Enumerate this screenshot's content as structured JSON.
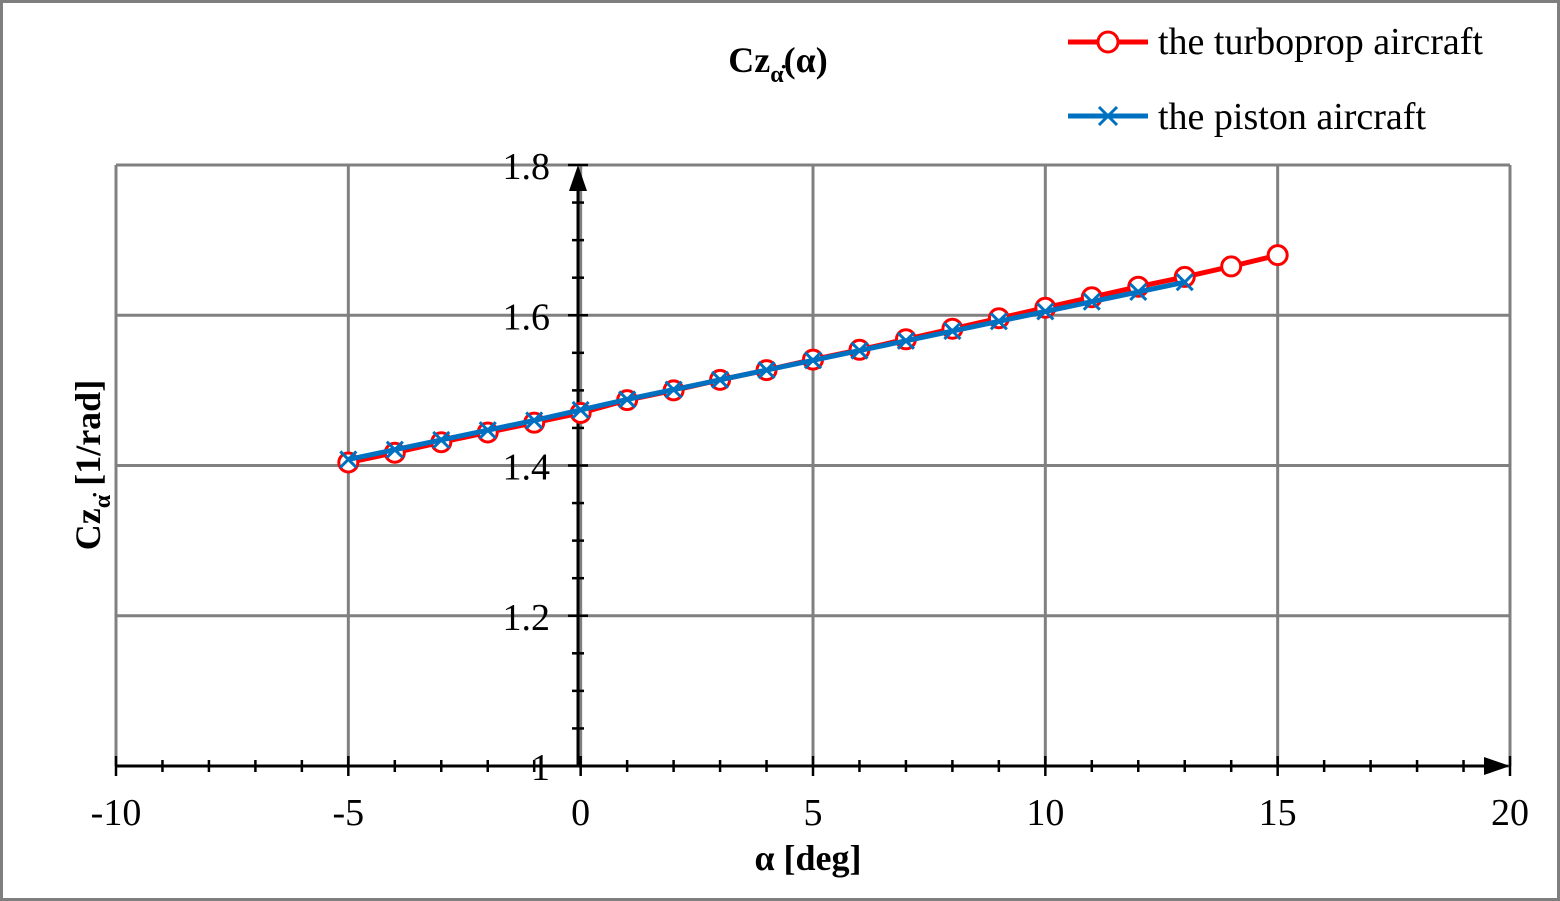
{
  "chart_data": {
    "type": "line",
    "title": "Czα̇(α)",
    "xlabel": "α [deg]",
    "ylabel": "Czα̇ [1/rad]",
    "xlim": [
      -10,
      20
    ],
    "ylim": [
      1,
      1.8
    ],
    "x_ticks": [
      "-10",
      "-5",
      "0",
      "5",
      "10",
      "15",
      "20"
    ],
    "y_ticks": [
      "1",
      "1.2",
      "1.4",
      "1.6",
      "1.8"
    ],
    "grid": true,
    "legend_position": "top-right",
    "series": [
      {
        "name": "the turboprop aircraft",
        "color": "#ff0000",
        "marker": "circle",
        "x": [
          -5,
          -4,
          -3,
          -2,
          -1,
          0,
          1,
          2,
          3,
          4,
          5,
          6,
          7,
          8,
          9,
          10,
          11,
          12,
          13,
          14,
          15
        ],
        "y": [
          1.404,
          1.417,
          1.431,
          1.444,
          1.457,
          1.47,
          1.487,
          1.5,
          1.514,
          1.527,
          1.541,
          1.554,
          1.568,
          1.582,
          1.596,
          1.61,
          1.624,
          1.638,
          1.651,
          1.665,
          1.68
        ]
      },
      {
        "name": "the piston aircraft",
        "color": "#0070c0",
        "marker": "x",
        "x": [
          -5,
          -4,
          -3,
          -2,
          -1,
          0,
          1,
          2,
          3,
          4,
          5,
          6,
          7,
          8,
          9,
          10,
          11,
          12,
          13
        ],
        "y": [
          1.408,
          1.421,
          1.434,
          1.447,
          1.46,
          1.474,
          1.488,
          1.501,
          1.514,
          1.527,
          1.54,
          1.553,
          1.566,
          1.579,
          1.592,
          1.605,
          1.618,
          1.631,
          1.644
        ]
      }
    ]
  }
}
